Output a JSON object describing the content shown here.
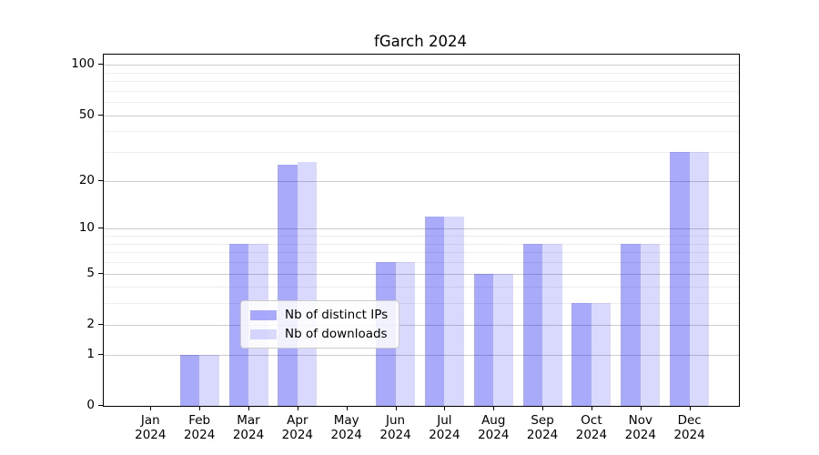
{
  "figure": {
    "title": "fGarch 2024"
  },
  "chart_data": {
    "type": "bar",
    "title": "fGarch 2024",
    "categories": [
      "Jan",
      "Feb",
      "Mar",
      "Apr",
      "May",
      "Jun",
      "Jul",
      "Aug",
      "Sep",
      "Oct",
      "Nov",
      "Dec"
    ],
    "x_year_line": "2024",
    "series": [
      {
        "name": "Nb of distinct IPs",
        "color": "rgba(21,21,244,0.365)",
        "values": [
          0,
          1,
          8,
          25,
          0,
          6,
          12,
          5,
          8,
          3,
          8,
          30
        ]
      },
      {
        "name": "Nb of downloads",
        "color": "rgba(21,21,244,0.16)",
        "values": [
          0,
          1,
          8,
          26,
          0,
          6,
          12,
          5,
          8,
          3,
          8,
          30
        ]
      }
    ],
    "yscale": "log1p",
    "ylim": [
      0,
      115
    ],
    "yticks": [
      0,
      1,
      2,
      5,
      10,
      20,
      50,
      100
    ],
    "minor_gridlines": [
      3,
      4,
      6,
      7,
      8,
      9,
      30,
      40,
      60,
      70,
      80,
      90
    ],
    "grid": true,
    "legend_position": "lower center",
    "colors": {
      "major_grid": "#cccccc",
      "minor_grid": "#ededed",
      "axis": "#000000",
      "text": "#000000"
    }
  }
}
